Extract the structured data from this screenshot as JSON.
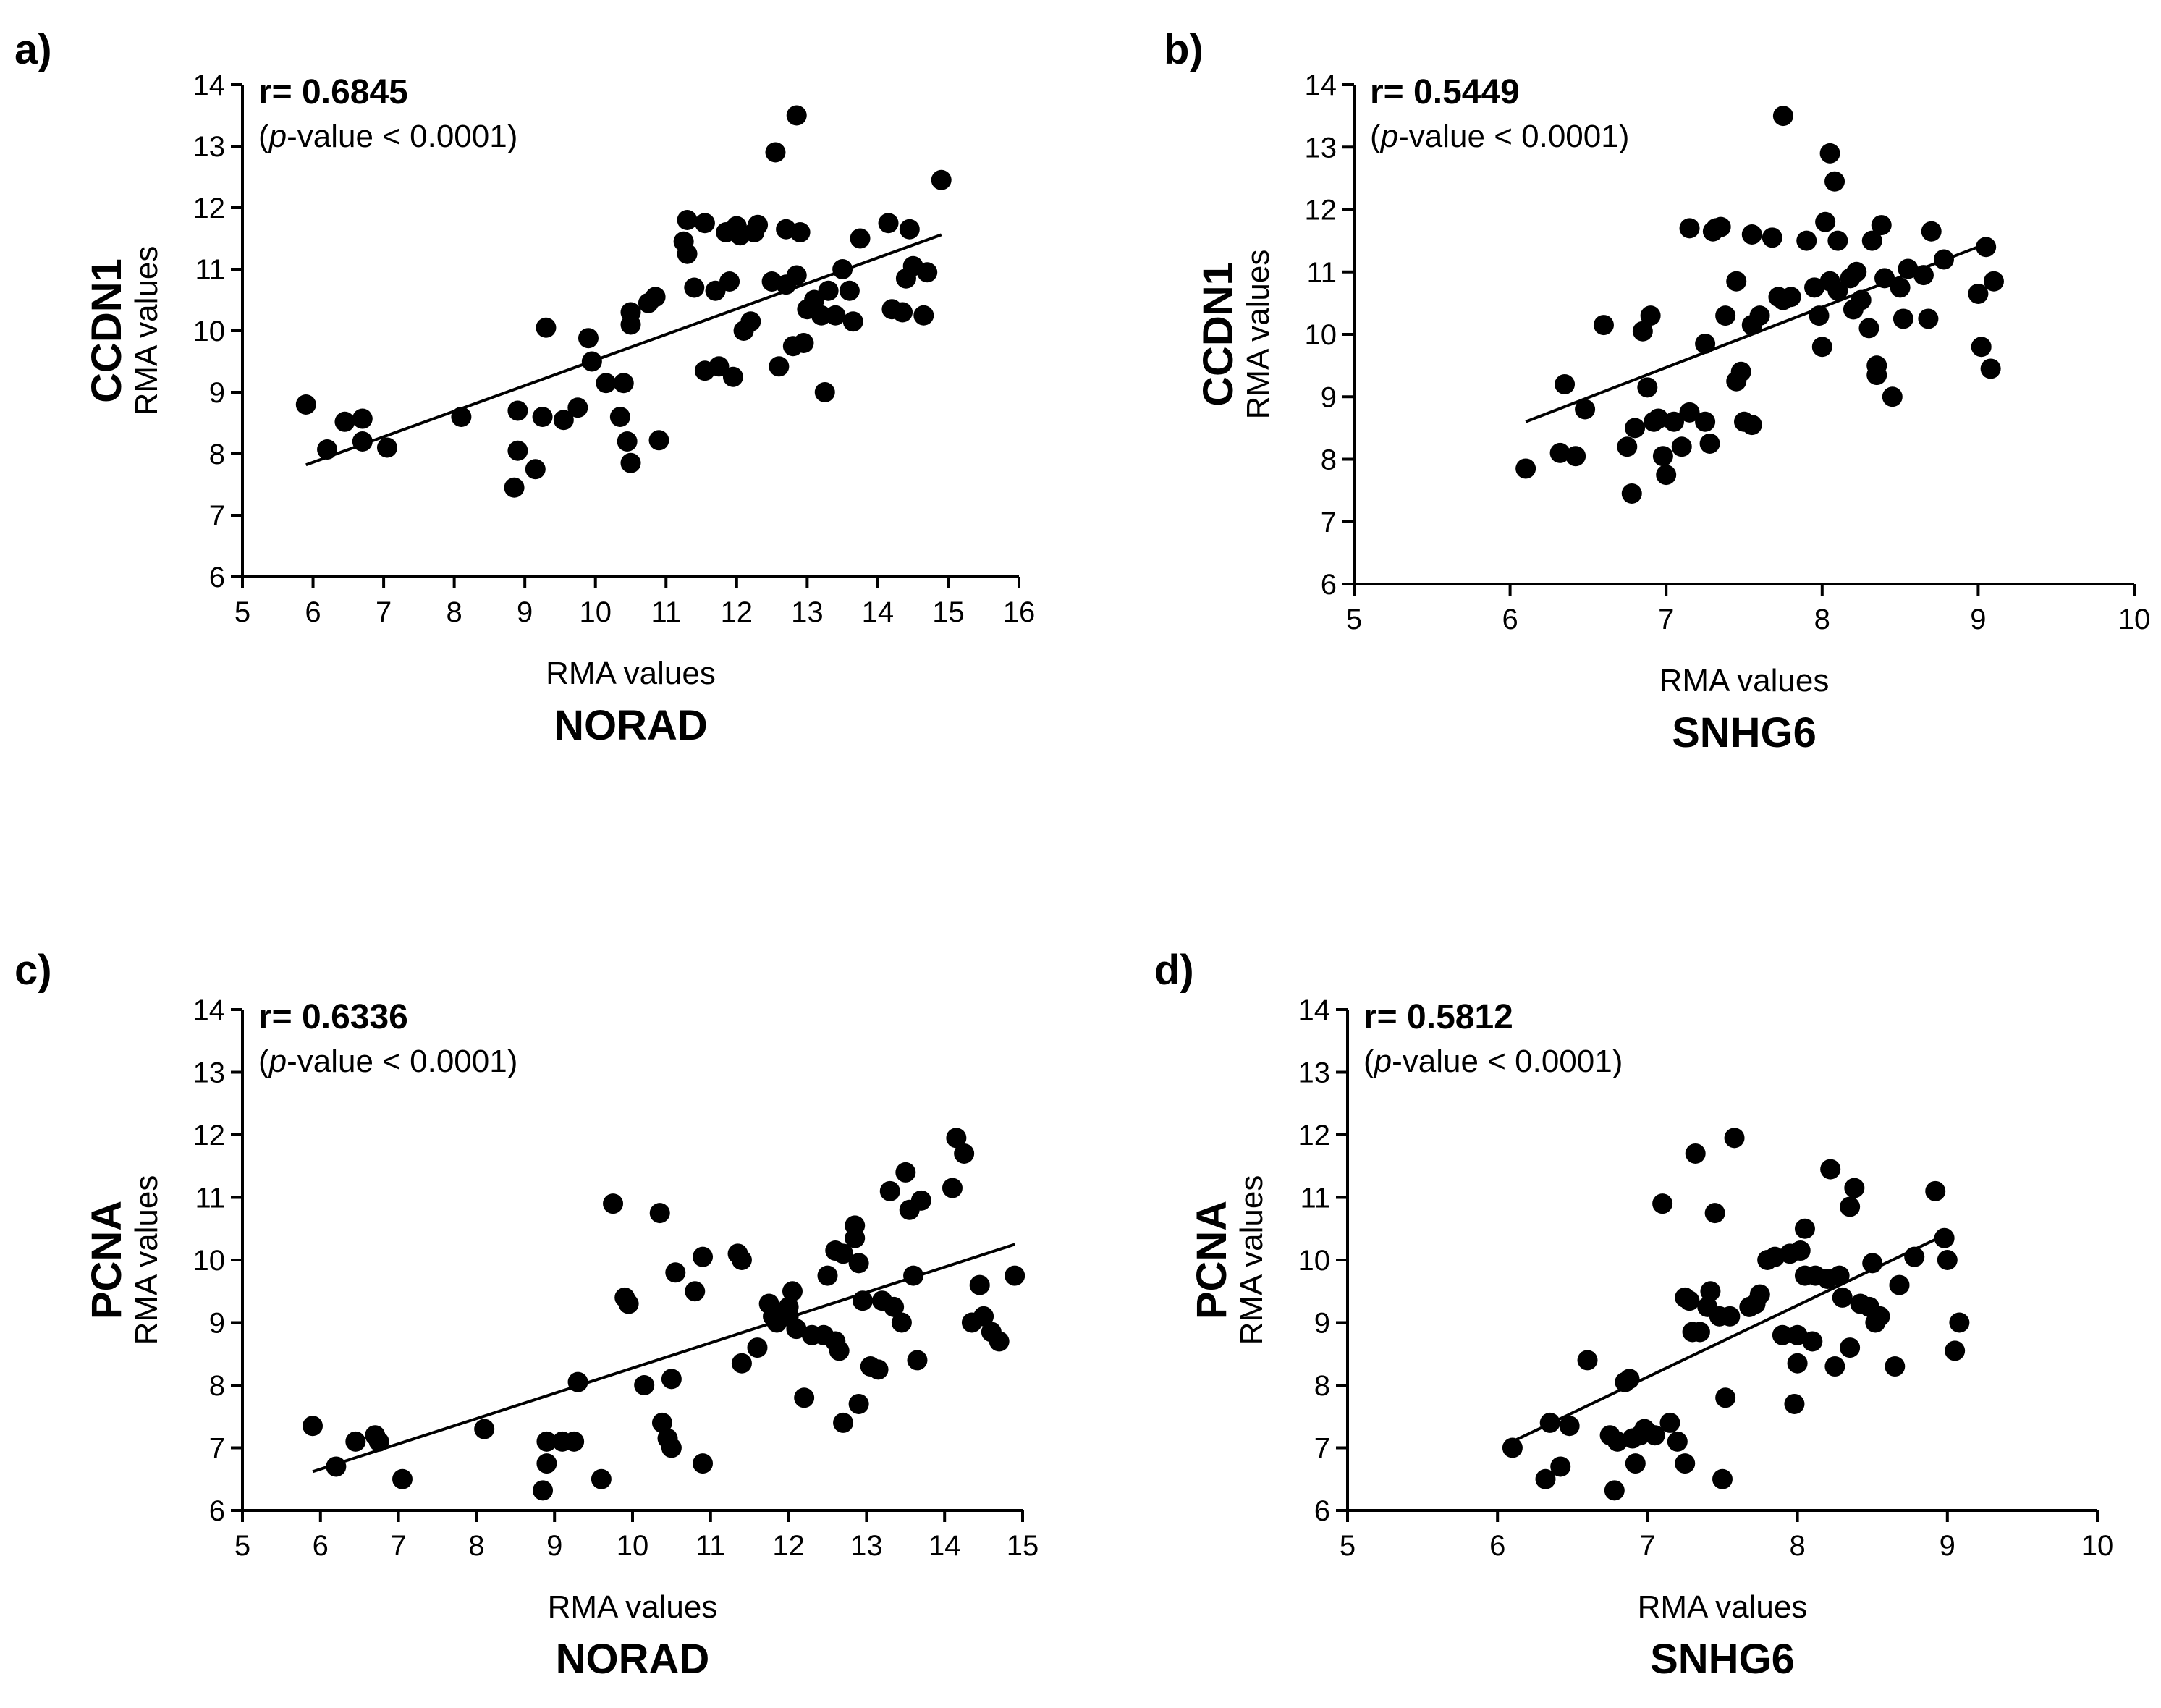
{
  "chart_data": [
    {
      "type": "scatter",
      "panel": "a)",
      "annotation": {
        "r": "r= 0.6845",
        "p_open": "(",
        "p_italic": "p",
        "p_rest": "-value < 0.0001)"
      },
      "xlabel": "RMA values",
      "xgene": "NORAD",
      "ylabel": "RMA values",
      "ygene": "CCDN1",
      "xlim": [
        5,
        16
      ],
      "ylim": [
        6,
        14
      ],
      "xticks": [
        5,
        6,
        7,
        8,
        9,
        10,
        11,
        12,
        13,
        14,
        15,
        16
      ],
      "yticks": [
        6,
        7,
        8,
        9,
        10,
        11,
        12,
        13,
        14
      ],
      "fit_line": [
        [
          5.9,
          7.82
        ],
        [
          14.9,
          11.56
        ]
      ],
      "points": [
        [
          5.9,
          8.8
        ],
        [
          6.2,
          8.07
        ],
        [
          6.45,
          8.52
        ],
        [
          6.7,
          8.57
        ],
        [
          6.7,
          8.2
        ],
        [
          7.05,
          8.1
        ],
        [
          8.1,
          8.6
        ],
        [
          8.85,
          7.45
        ],
        [
          8.9,
          8.05
        ],
        [
          8.9,
          8.7
        ],
        [
          9.15,
          7.75
        ],
        [
          9.25,
          8.6
        ],
        [
          9.3,
          10.05
        ],
        [
          9.55,
          8.55
        ],
        [
          9.75,
          8.75
        ],
        [
          9.9,
          9.88
        ],
        [
          9.95,
          9.5
        ],
        [
          10.15,
          9.15
        ],
        [
          10.35,
          8.6
        ],
        [
          10.4,
          9.15
        ],
        [
          10.45,
          8.2
        ],
        [
          10.5,
          7.85
        ],
        [
          10.5,
          10.3
        ],
        [
          10.5,
          10.1
        ],
        [
          10.75,
          10.45
        ],
        [
          10.85,
          10.55
        ],
        [
          10.9,
          8.22
        ],
        [
          11.25,
          11.45
        ],
        [
          11.3,
          11.8
        ],
        [
          11.3,
          11.25
        ],
        [
          11.4,
          10.7
        ],
        [
          11.55,
          11.75
        ],
        [
          11.55,
          9.35
        ],
        [
          11.7,
          10.65
        ],
        [
          11.75,
          9.42
        ],
        [
          11.85,
          11.6
        ],
        [
          11.9,
          10.8
        ],
        [
          11.95,
          9.25
        ],
        [
          12.0,
          11.7
        ],
        [
          12.05,
          11.55
        ],
        [
          12.1,
          10.0
        ],
        [
          12.2,
          10.15
        ],
        [
          12.25,
          11.6
        ],
        [
          12.3,
          11.72
        ],
        [
          12.5,
          10.8
        ],
        [
          12.55,
          12.9
        ],
        [
          12.6,
          9.42
        ],
        [
          12.7,
          11.65
        ],
        [
          12.7,
          10.75
        ],
        [
          12.8,
          9.75
        ],
        [
          12.85,
          13.5
        ],
        [
          12.85,
          10.9
        ],
        [
          12.9,
          11.6
        ],
        [
          12.95,
          9.8
        ],
        [
          13.0,
          10.35
        ],
        [
          13.1,
          10.5
        ],
        [
          13.2,
          10.25
        ],
        [
          13.25,
          9.0
        ],
        [
          13.3,
          10.65
        ],
        [
          13.4,
          10.25
        ],
        [
          13.5,
          11.0
        ],
        [
          13.6,
          10.65
        ],
        [
          13.65,
          10.15
        ],
        [
          13.75,
          11.5
        ],
        [
          14.15,
          11.75
        ],
        [
          14.2,
          10.35
        ],
        [
          14.35,
          10.3
        ],
        [
          14.4,
          10.85
        ],
        [
          14.45,
          11.65
        ],
        [
          14.5,
          11.05
        ],
        [
          14.65,
          10.25
        ],
        [
          14.7,
          10.95
        ],
        [
          14.9,
          12.45
        ]
      ]
    },
    {
      "type": "scatter",
      "panel": "b)",
      "annotation": {
        "r": "r= 0.5449",
        "p_open": "(",
        "p_italic": "p",
        "p_rest": "-value < 0.0001)"
      },
      "xlabel": "RMA values",
      "xgene": "SNHG6",
      "ylabel": "RMA values",
      "ygene": "CCDN1",
      "xlim": [
        5,
        10
      ],
      "ylim": [
        6,
        14
      ],
      "xticks": [
        5,
        6,
        7,
        8,
        9,
        10
      ],
      "yticks": [
        6,
        7,
        8,
        9,
        10,
        11,
        12,
        13,
        14
      ],
      "fit_line": [
        [
          6.1,
          8.6
        ],
        [
          9.05,
          11.45
        ]
      ],
      "points": [
        [
          6.1,
          7.85
        ],
        [
          6.32,
          8.1
        ],
        [
          6.35,
          9.2
        ],
        [
          6.42,
          8.05
        ],
        [
          6.48,
          8.8
        ],
        [
          6.6,
          10.15
        ],
        [
          6.75,
          8.2
        ],
        [
          6.78,
          7.45
        ],
        [
          6.8,
          8.5
        ],
        [
          6.85,
          10.05
        ],
        [
          6.88,
          9.15
        ],
        [
          6.9,
          10.3
        ],
        [
          6.92,
          8.6
        ],
        [
          6.95,
          8.65
        ],
        [
          6.98,
          8.05
        ],
        [
          7.0,
          7.75
        ],
        [
          7.05,
          8.6
        ],
        [
          7.1,
          8.2
        ],
        [
          7.15,
          8.75
        ],
        [
          7.15,
          11.7
        ],
        [
          7.25,
          9.85
        ],
        [
          7.25,
          8.6
        ],
        [
          7.28,
          8.25
        ],
        [
          7.3,
          11.65
        ],
        [
          7.32,
          11.7
        ],
        [
          7.35,
          11.72
        ],
        [
          7.38,
          10.3
        ],
        [
          7.45,
          10.85
        ],
        [
          7.45,
          9.25
        ],
        [
          7.48,
          9.4
        ],
        [
          7.5,
          8.6
        ],
        [
          7.55,
          11.6
        ],
        [
          7.55,
          10.15
        ],
        [
          7.55,
          8.55
        ],
        [
          7.6,
          10.3
        ],
        [
          7.68,
          11.55
        ],
        [
          7.72,
          10.6
        ],
        [
          7.75,
          13.5
        ],
        [
          7.75,
          10.55
        ],
        [
          7.8,
          10.6
        ],
        [
          7.9,
          11.5
        ],
        [
          7.95,
          10.75
        ],
        [
          7.98,
          10.3
        ],
        [
          8.0,
          9.8
        ],
        [
          8.02,
          11.8
        ],
        [
          8.05,
          12.9
        ],
        [
          8.05,
          10.85
        ],
        [
          8.08,
          12.45
        ],
        [
          8.1,
          11.5
        ],
        [
          8.1,
          10.7
        ],
        [
          8.18,
          10.9
        ],
        [
          8.2,
          10.4
        ],
        [
          8.22,
          11.0
        ],
        [
          8.25,
          10.55
        ],
        [
          8.3,
          10.1
        ],
        [
          8.32,
          11.5
        ],
        [
          8.35,
          9.5
        ],
        [
          8.35,
          9.35
        ],
        [
          8.38,
          11.75
        ],
        [
          8.4,
          10.9
        ],
        [
          8.45,
          9.0
        ],
        [
          8.5,
          10.75
        ],
        [
          8.52,
          10.25
        ],
        [
          8.55,
          11.05
        ],
        [
          8.65,
          10.95
        ],
        [
          8.68,
          10.25
        ],
        [
          8.7,
          11.65
        ],
        [
          8.78,
          11.2
        ],
        [
          9.0,
          10.65
        ],
        [
          9.02,
          9.8
        ],
        [
          9.05,
          11.4
        ],
        [
          9.08,
          9.45
        ],
        [
          9.1,
          10.85
        ]
      ]
    },
    {
      "type": "scatter",
      "panel": "c)",
      "annotation": {
        "r": "r= 0.6336",
        "p_open": "(",
        "p_italic": "p",
        "p_rest": "-value < 0.0001)"
      },
      "xlabel": "RMA values",
      "xgene": "NORAD",
      "ylabel": "RMA values",
      "ygene": "PCNA",
      "xlim": [
        5,
        15
      ],
      "ylim": [
        6,
        14
      ],
      "xticks": [
        5,
        6,
        7,
        8,
        9,
        10,
        11,
        12,
        13,
        14,
        15
      ],
      "yticks": [
        6,
        7,
        8,
        9,
        10,
        11,
        12,
        13,
        14
      ],
      "fit_line": [
        [
          5.9,
          6.62
        ],
        [
          14.9,
          10.25
        ]
      ],
      "points": [
        [
          5.9,
          7.35
        ],
        [
          6.2,
          6.7
        ],
        [
          6.45,
          7.1
        ],
        [
          6.7,
          7.2
        ],
        [
          6.75,
          7.1
        ],
        [
          7.05,
          6.5
        ],
        [
          8.1,
          7.3
        ],
        [
          8.85,
          6.32
        ],
        [
          8.9,
          6.75
        ],
        [
          8.9,
          7.1
        ],
        [
          9.1,
          7.1
        ],
        [
          9.25,
          7.1
        ],
        [
          9.3,
          8.05
        ],
        [
          9.6,
          6.5
        ],
        [
          9.75,
          10.9
        ],
        [
          9.9,
          9.4
        ],
        [
          9.95,
          9.3
        ],
        [
          10.15,
          8.0
        ],
        [
          10.35,
          10.75
        ],
        [
          10.38,
          7.4
        ],
        [
          10.45,
          7.15
        ],
        [
          10.5,
          7.0
        ],
        [
          10.5,
          8.1
        ],
        [
          10.55,
          9.8
        ],
        [
          10.8,
          9.5
        ],
        [
          10.9,
          10.05
        ],
        [
          10.9,
          6.75
        ],
        [
          11.35,
          10.1
        ],
        [
          11.4,
          8.35
        ],
        [
          11.4,
          10.0
        ],
        [
          11.6,
          8.6
        ],
        [
          11.75,
          9.3
        ],
        [
          11.8,
          9.1
        ],
        [
          11.85,
          9.0
        ],
        [
          11.9,
          9.15
        ],
        [
          12.0,
          9.1
        ],
        [
          12.0,
          9.25
        ],
        [
          12.05,
          9.5
        ],
        [
          12.1,
          8.9
        ],
        [
          12.2,
          7.8
        ],
        [
          12.3,
          8.8
        ],
        [
          12.45,
          8.8
        ],
        [
          12.5,
          9.75
        ],
        [
          12.6,
          8.7
        ],
        [
          12.6,
          10.15
        ],
        [
          12.65,
          8.55
        ],
        [
          12.7,
          10.1
        ],
        [
          12.7,
          7.4
        ],
        [
          12.85,
          10.35
        ],
        [
          12.85,
          10.55
        ],
        [
          12.9,
          7.7
        ],
        [
          12.9,
          9.95
        ],
        [
          12.95,
          9.35
        ],
        [
          13.05,
          8.3
        ],
        [
          13.15,
          8.25
        ],
        [
          13.2,
          9.35
        ],
        [
          13.3,
          11.1
        ],
        [
          13.35,
          9.25
        ],
        [
          13.45,
          9.0
        ],
        [
          13.5,
          11.4
        ],
        [
          13.55,
          10.8
        ],
        [
          13.6,
          9.75
        ],
        [
          13.65,
          8.4
        ],
        [
          13.7,
          10.95
        ],
        [
          14.1,
          11.15
        ],
        [
          14.15,
          11.95
        ],
        [
          14.25,
          11.7
        ],
        [
          14.35,
          9.0
        ],
        [
          14.45,
          9.6
        ],
        [
          14.5,
          9.1
        ],
        [
          14.6,
          8.85
        ],
        [
          14.7,
          8.7
        ],
        [
          14.9,
          9.75
        ]
      ]
    },
    {
      "type": "scatter",
      "panel": "d)",
      "annotation": {
        "r": "r= 0.5812",
        "p_open": "(",
        "p_italic": "p",
        "p_rest": "-value < 0.0001)"
      },
      "xlabel": "RMA values",
      "xgene": "SNHG6",
      "ylabel": "RMA values",
      "ygene": "PCNA",
      "xlim": [
        5,
        10
      ],
      "ylim": [
        6,
        14
      ],
      "xticks": [
        5,
        6,
        7,
        8,
        9,
        10
      ],
      "yticks": [
        6,
        7,
        8,
        9,
        10,
        11,
        12,
        13,
        14
      ],
      "fit_line": [
        [
          6.1,
          7.1
        ],
        [
          9.0,
          10.42
        ]
      ],
      "points": [
        [
          6.1,
          7.0
        ],
        [
          6.32,
          6.5
        ],
        [
          6.35,
          7.4
        ],
        [
          6.42,
          6.7
        ],
        [
          6.48,
          7.35
        ],
        [
          6.6,
          8.4
        ],
        [
          6.75,
          7.2
        ],
        [
          6.78,
          6.32
        ],
        [
          6.8,
          7.1
        ],
        [
          6.85,
          8.05
        ],
        [
          6.88,
          8.1
        ],
        [
          6.9,
          7.15
        ],
        [
          6.92,
          6.75
        ],
        [
          6.95,
          7.2
        ],
        [
          6.98,
          7.3
        ],
        [
          7.0,
          7.25
        ],
        [
          7.05,
          7.2
        ],
        [
          7.1,
          10.9
        ],
        [
          7.15,
          7.4
        ],
        [
          7.2,
          7.1
        ],
        [
          7.25,
          6.75
        ],
        [
          7.25,
          9.4
        ],
        [
          7.28,
          9.35
        ],
        [
          7.3,
          8.85
        ],
        [
          7.32,
          11.7
        ],
        [
          7.35,
          8.85
        ],
        [
          7.4,
          9.25
        ],
        [
          7.42,
          9.5
        ],
        [
          7.45,
          10.75
        ],
        [
          7.48,
          9.1
        ],
        [
          7.5,
          6.5
        ],
        [
          7.52,
          7.8
        ],
        [
          7.55,
          9.1
        ],
        [
          7.58,
          11.95
        ],
        [
          7.68,
          9.25
        ],
        [
          7.72,
          9.3
        ],
        [
          7.75,
          9.45
        ],
        [
          7.8,
          10.0
        ],
        [
          7.85,
          10.05
        ],
        [
          7.9,
          8.8
        ],
        [
          7.95,
          10.1
        ],
        [
          7.98,
          7.7
        ],
        [
          8.0,
          8.35
        ],
        [
          8.0,
          8.8
        ],
        [
          8.02,
          10.15
        ],
        [
          8.05,
          10.5
        ],
        [
          8.05,
          9.75
        ],
        [
          8.1,
          8.7
        ],
        [
          8.12,
          9.75
        ],
        [
          8.2,
          9.7
        ],
        [
          8.22,
          11.45
        ],
        [
          8.25,
          8.3
        ],
        [
          8.28,
          9.75
        ],
        [
          8.3,
          9.4
        ],
        [
          8.35,
          8.6
        ],
        [
          8.35,
          10.85
        ],
        [
          8.38,
          11.15
        ],
        [
          8.42,
          9.3
        ],
        [
          8.48,
          9.25
        ],
        [
          8.5,
          9.95
        ],
        [
          8.52,
          9.0
        ],
        [
          8.55,
          9.1
        ],
        [
          8.65,
          8.3
        ],
        [
          8.68,
          9.6
        ],
        [
          8.78,
          10.05
        ],
        [
          8.92,
          11.1
        ],
        [
          8.98,
          10.35
        ],
        [
          9.0,
          10.0
        ],
        [
          9.05,
          8.55
        ],
        [
          9.08,
          9.0
        ]
      ]
    }
  ]
}
